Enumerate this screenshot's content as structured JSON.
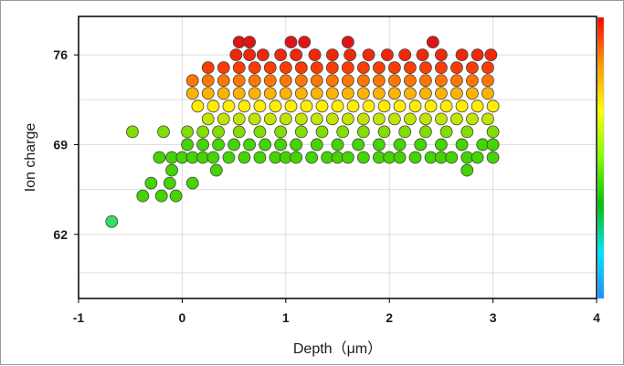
{
  "chart_data": {
    "type": "scatter",
    "title": "",
    "xlabel": "Depth（μm）",
    "ylabel": "Ion charge",
    "xlim": [
      -1,
      4
    ],
    "ylim": [
      57,
      79
    ],
    "x_ticks": [
      "-1",
      "0",
      "1",
      "2",
      "3",
      "4"
    ],
    "y_ticks": [
      "62",
      "69",
      "76"
    ],
    "grid": true,
    "legend": "none",
    "colorbar": {
      "position": "right",
      "colors": [
        "#1e90ff",
        "#00e5ff",
        "#00c000",
        "#7fff00",
        "#ffff00",
        "#ff9900",
        "#ff0000"
      ]
    },
    "marker_color_scale": {
      "69": "#44d400",
      "72": "#ffee00",
      "75": "#ff3c00",
      "77": "#e01414"
    },
    "points": [
      {
        "x": -0.68,
        "y": 63.0
      },
      {
        "x": -0.38,
        "y": 65.0
      },
      {
        "x": -0.3,
        "y": 66.0
      },
      {
        "x": -0.2,
        "y": 65.0
      },
      {
        "x": -0.12,
        "y": 66.0
      },
      {
        "x": -0.06,
        "y": 65.0
      },
      {
        "x": 0.1,
        "y": 66.0
      },
      {
        "x": -0.1,
        "y": 67.0
      },
      {
        "x": 0.33,
        "y": 67.0
      },
      {
        "x": -0.22,
        "y": 68.0
      },
      {
        "x": -0.1,
        "y": 68.0
      },
      {
        "x": -0.48,
        "y": 70.0
      },
      {
        "x": -0.18,
        "y": 70.0
      },
      {
        "x": 2.75,
        "y": 67.0
      },
      {
        "x": 0.0,
        "y": 68
      },
      {
        "x": 0.1,
        "y": 68
      },
      {
        "x": 0.2,
        "y": 68
      },
      {
        "x": 0.3,
        "y": 68
      },
      {
        "x": 0.45,
        "y": 68
      },
      {
        "x": 0.6,
        "y": 68
      },
      {
        "x": 0.75,
        "y": 68
      },
      {
        "x": 0.9,
        "y": 68
      },
      {
        "x": 1.0,
        "y": 68
      },
      {
        "x": 1.1,
        "y": 68
      },
      {
        "x": 1.25,
        "y": 68
      },
      {
        "x": 1.4,
        "y": 68
      },
      {
        "x": 1.5,
        "y": 68
      },
      {
        "x": 1.6,
        "y": 68
      },
      {
        "x": 1.75,
        "y": 68
      },
      {
        "x": 1.9,
        "y": 68
      },
      {
        "x": 2.0,
        "y": 68
      },
      {
        "x": 2.1,
        "y": 68
      },
      {
        "x": 2.25,
        "y": 68
      },
      {
        "x": 2.4,
        "y": 68
      },
      {
        "x": 2.5,
        "y": 68
      },
      {
        "x": 2.6,
        "y": 68
      },
      {
        "x": 2.75,
        "y": 68
      },
      {
        "x": 2.85,
        "y": 68
      },
      {
        "x": 3.0,
        "y": 68
      },
      {
        "x": 0.05,
        "y": 69
      },
      {
        "x": 0.2,
        "y": 69
      },
      {
        "x": 0.35,
        "y": 69
      },
      {
        "x": 0.5,
        "y": 69
      },
      {
        "x": 0.65,
        "y": 69
      },
      {
        "x": 0.8,
        "y": 69
      },
      {
        "x": 0.95,
        "y": 69
      },
      {
        "x": 1.1,
        "y": 69
      },
      {
        "x": 1.3,
        "y": 69
      },
      {
        "x": 1.5,
        "y": 69
      },
      {
        "x": 1.7,
        "y": 69
      },
      {
        "x": 1.9,
        "y": 69
      },
      {
        "x": 2.1,
        "y": 69
      },
      {
        "x": 2.3,
        "y": 69
      },
      {
        "x": 2.5,
        "y": 69
      },
      {
        "x": 2.7,
        "y": 69
      },
      {
        "x": 2.9,
        "y": 69
      },
      {
        "x": 3.0,
        "y": 69
      },
      {
        "x": 0.05,
        "y": 70
      },
      {
        "x": 0.2,
        "y": 70
      },
      {
        "x": 0.35,
        "y": 70
      },
      {
        "x": 0.55,
        "y": 70
      },
      {
        "x": 0.75,
        "y": 70
      },
      {
        "x": 0.95,
        "y": 70
      },
      {
        "x": 1.15,
        "y": 70
      },
      {
        "x": 1.35,
        "y": 70
      },
      {
        "x": 1.55,
        "y": 70
      },
      {
        "x": 1.75,
        "y": 70
      },
      {
        "x": 1.95,
        "y": 70
      },
      {
        "x": 2.15,
        "y": 70
      },
      {
        "x": 2.35,
        "y": 70
      },
      {
        "x": 2.55,
        "y": 70
      },
      {
        "x": 2.75,
        "y": 70
      },
      {
        "x": 3.0,
        "y": 70
      },
      {
        "x": 0.25,
        "y": 71
      },
      {
        "x": 0.4,
        "y": 71
      },
      {
        "x": 0.55,
        "y": 71
      },
      {
        "x": 0.7,
        "y": 71
      },
      {
        "x": 0.85,
        "y": 71
      },
      {
        "x": 1.0,
        "y": 71
      },
      {
        "x": 1.15,
        "y": 71
      },
      {
        "x": 1.3,
        "y": 71
      },
      {
        "x": 1.45,
        "y": 71
      },
      {
        "x": 1.6,
        "y": 71
      },
      {
        "x": 1.75,
        "y": 71
      },
      {
        "x": 1.9,
        "y": 71
      },
      {
        "x": 2.05,
        "y": 71
      },
      {
        "x": 2.2,
        "y": 71
      },
      {
        "x": 2.35,
        "y": 71
      },
      {
        "x": 2.5,
        "y": 71
      },
      {
        "x": 2.65,
        "y": 71
      },
      {
        "x": 2.8,
        "y": 71
      },
      {
        "x": 2.95,
        "y": 71
      },
      {
        "x": 0.15,
        "y": 72
      },
      {
        "x": 0.3,
        "y": 72
      },
      {
        "x": 0.45,
        "y": 72
      },
      {
        "x": 0.6,
        "y": 72
      },
      {
        "x": 0.75,
        "y": 72
      },
      {
        "x": 0.9,
        "y": 72
      },
      {
        "x": 1.05,
        "y": 72
      },
      {
        "x": 1.2,
        "y": 72
      },
      {
        "x": 1.35,
        "y": 72
      },
      {
        "x": 1.5,
        "y": 72
      },
      {
        "x": 1.65,
        "y": 72
      },
      {
        "x": 1.8,
        "y": 72
      },
      {
        "x": 1.95,
        "y": 72
      },
      {
        "x": 2.1,
        "y": 72
      },
      {
        "x": 2.25,
        "y": 72
      },
      {
        "x": 2.4,
        "y": 72
      },
      {
        "x": 2.55,
        "y": 72
      },
      {
        "x": 2.7,
        "y": 72
      },
      {
        "x": 2.85,
        "y": 72
      },
      {
        "x": 3.0,
        "y": 72
      },
      {
        "x": 0.1,
        "y": 73
      },
      {
        "x": 0.25,
        "y": 73
      },
      {
        "x": 0.4,
        "y": 73
      },
      {
        "x": 0.55,
        "y": 73
      },
      {
        "x": 0.7,
        "y": 73
      },
      {
        "x": 0.85,
        "y": 73
      },
      {
        "x": 1.0,
        "y": 73
      },
      {
        "x": 1.15,
        "y": 73
      },
      {
        "x": 1.3,
        "y": 73
      },
      {
        "x": 1.45,
        "y": 73
      },
      {
        "x": 1.6,
        "y": 73
      },
      {
        "x": 1.75,
        "y": 73
      },
      {
        "x": 1.9,
        "y": 73
      },
      {
        "x": 2.05,
        "y": 73
      },
      {
        "x": 2.2,
        "y": 73
      },
      {
        "x": 2.35,
        "y": 73
      },
      {
        "x": 2.5,
        "y": 73
      },
      {
        "x": 2.65,
        "y": 73
      },
      {
        "x": 2.8,
        "y": 73
      },
      {
        "x": 2.95,
        "y": 73
      },
      {
        "x": 0.1,
        "y": 74
      },
      {
        "x": 0.25,
        "y": 74
      },
      {
        "x": 0.4,
        "y": 74
      },
      {
        "x": 0.55,
        "y": 74
      },
      {
        "x": 0.7,
        "y": 74
      },
      {
        "x": 0.85,
        "y": 74
      },
      {
        "x": 1.0,
        "y": 74
      },
      {
        "x": 1.15,
        "y": 74
      },
      {
        "x": 1.3,
        "y": 74
      },
      {
        "x": 1.45,
        "y": 74
      },
      {
        "x": 1.6,
        "y": 74
      },
      {
        "x": 1.75,
        "y": 74
      },
      {
        "x": 1.9,
        "y": 74
      },
      {
        "x": 2.05,
        "y": 74
      },
      {
        "x": 2.2,
        "y": 74
      },
      {
        "x": 2.35,
        "y": 74
      },
      {
        "x": 2.5,
        "y": 74
      },
      {
        "x": 2.65,
        "y": 74
      },
      {
        "x": 2.8,
        "y": 74
      },
      {
        "x": 2.95,
        "y": 74
      },
      {
        "x": 0.25,
        "y": 75
      },
      {
        "x": 0.4,
        "y": 75
      },
      {
        "x": 0.55,
        "y": 75
      },
      {
        "x": 0.7,
        "y": 75
      },
      {
        "x": 0.85,
        "y": 75
      },
      {
        "x": 1.0,
        "y": 75
      },
      {
        "x": 1.15,
        "y": 75
      },
      {
        "x": 1.3,
        "y": 75
      },
      {
        "x": 1.45,
        "y": 75
      },
      {
        "x": 1.6,
        "y": 75
      },
      {
        "x": 1.75,
        "y": 75
      },
      {
        "x": 1.9,
        "y": 75
      },
      {
        "x": 2.05,
        "y": 75
      },
      {
        "x": 2.2,
        "y": 75
      },
      {
        "x": 2.35,
        "y": 75
      },
      {
        "x": 2.5,
        "y": 75
      },
      {
        "x": 2.65,
        "y": 75
      },
      {
        "x": 2.8,
        "y": 75
      },
      {
        "x": 2.95,
        "y": 75
      },
      {
        "x": 0.52,
        "y": 76
      },
      {
        "x": 0.65,
        "y": 76
      },
      {
        "x": 0.78,
        "y": 76
      },
      {
        "x": 0.95,
        "y": 76
      },
      {
        "x": 1.1,
        "y": 76
      },
      {
        "x": 1.28,
        "y": 76
      },
      {
        "x": 1.45,
        "y": 76
      },
      {
        "x": 1.62,
        "y": 76
      },
      {
        "x": 1.8,
        "y": 76
      },
      {
        "x": 1.98,
        "y": 76
      },
      {
        "x": 2.15,
        "y": 76
      },
      {
        "x": 2.32,
        "y": 76
      },
      {
        "x": 2.5,
        "y": 76
      },
      {
        "x": 2.7,
        "y": 76
      },
      {
        "x": 2.85,
        "y": 76
      },
      {
        "x": 2.98,
        "y": 76
      },
      {
        "x": 0.55,
        "y": 77
      },
      {
        "x": 0.65,
        "y": 77
      },
      {
        "x": 1.05,
        "y": 77
      },
      {
        "x": 1.18,
        "y": 77
      },
      {
        "x": 1.6,
        "y": 77
      },
      {
        "x": 2.42,
        "y": 77
      }
    ]
  }
}
